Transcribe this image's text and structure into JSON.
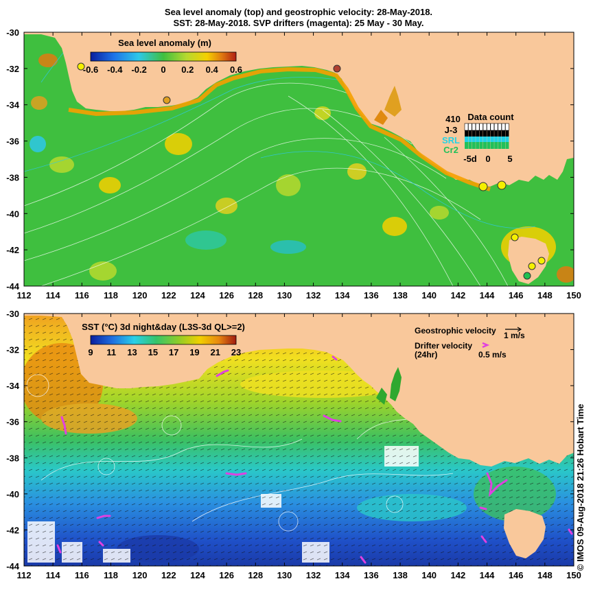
{
  "title_line1": "Sea level anomaly (top) and geostrophic velocity: 28-May-2018.",
  "title_line2": "SST: 28-May-2018. SVP drifters (magenta): 25 May - 30 May.",
  "top_panel": {
    "colorbar_title": "Sea level anomaly (m)",
    "colorbar_ticks": [
      "-0.6",
      "-0.4",
      "-0.2",
      "0",
      "0.2",
      "0.4",
      "0.6"
    ],
    "colorbar_colors": [
      "#0a1f9e",
      "#1e73e8",
      "#2ec8e8",
      "#3fbf3f",
      "#b7d92e",
      "#f5d000",
      "#e07a10",
      "#b01e12"
    ],
    "data_count": {
      "title": "Data count",
      "value": "410",
      "satellites": [
        {
          "name": "J-3",
          "color": "#000000"
        },
        {
          "name": "SRL",
          "color": "#22d3e6"
        },
        {
          "name": "Cr2",
          "color": "#22c05a"
        }
      ],
      "x_ticks": [
        "-5d",
        "0",
        "5"
      ]
    }
  },
  "bottom_panel": {
    "colorbar_title": "SST (°C) 3d night&day (L3S-3d QL>=2)",
    "colorbar_ticks": [
      "9",
      "11",
      "13",
      "15",
      "17",
      "19",
      "21",
      "23"
    ],
    "colorbar_colors": [
      "#0a1f9e",
      "#1f6fe0",
      "#2ad0e8",
      "#35c46a",
      "#8ccc2a",
      "#f0d000",
      "#e88810",
      "#a01a10"
    ],
    "legend": {
      "geostrophic_label": "Geostrophic velocity",
      "geostrophic_scale": "1 m/s",
      "drifter_label": "Drifter velocity",
      "drifter_sub": "(24hr)",
      "drifter_scale": "0.5 m/s"
    }
  },
  "axes": {
    "x_ticks": [
      "112",
      "114",
      "116",
      "118",
      "120",
      "122",
      "124",
      "126",
      "128",
      "130",
      "132",
      "134",
      "136",
      "138",
      "140",
      "142",
      "144",
      "146",
      "148",
      "150"
    ],
    "y_ticks": [
      "-30",
      "-32",
      "-34",
      "-36",
      "-38",
      "-40",
      "-42",
      "-44"
    ]
  },
  "credit": "© IMOS 09-Aug-2018 21:26 Hobart Time",
  "colors": {
    "land": "#f9c89b",
    "ocean_slate": "#3fbf3f",
    "drifter": "#e040e0",
    "marker": "#f5f000"
  }
}
